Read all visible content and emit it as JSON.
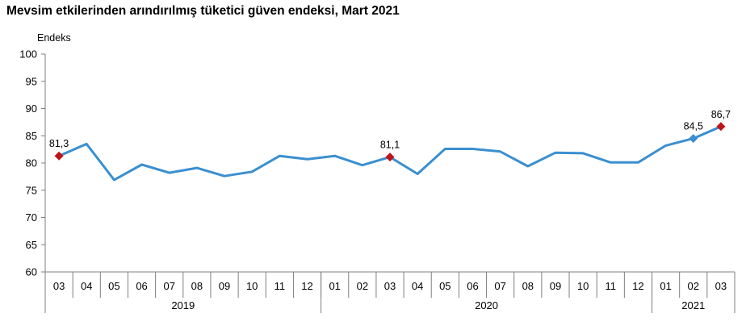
{
  "chart_data": {
    "type": "line",
    "title": "Mevsim etkilerinden arındırılmış tüketici güven endeksi, Mart 2021",
    "ylabel": "Endeks",
    "xlabel": "",
    "ylim": [
      60,
      100
    ],
    "yticks": [
      "60",
      "65",
      "70",
      "75",
      "80",
      "85",
      "90",
      "95",
      "100"
    ],
    "grid": false,
    "categories": [
      "03",
      "04",
      "05",
      "06",
      "07",
      "08",
      "09",
      "10",
      "11",
      "12",
      "01",
      "02",
      "03",
      "04",
      "05",
      "06",
      "07",
      "08",
      "09",
      "10",
      "11",
      "12",
      "01",
      "02",
      "03"
    ],
    "year_groups": [
      {
        "label": "2019",
        "start": 0,
        "end": 9
      },
      {
        "label": "2020",
        "start": 10,
        "end": 21
      },
      {
        "label": "2021",
        "start": 22,
        "end": 24
      }
    ],
    "series": [
      {
        "values": [
          81.3,
          83.5,
          76.9,
          79.7,
          78.2,
          79.1,
          77.6,
          78.4,
          81.3,
          80.7,
          81.3,
          79.6,
          81.1,
          78.0,
          82.6,
          82.6,
          82.1,
          79.4,
          81.9,
          81.8,
          80.1,
          80.1,
          83.2,
          84.5,
          86.7
        ],
        "color": "#3A8FD0"
      }
    ],
    "annotations": [
      {
        "index": 0,
        "label": "81,3",
        "marker": "diamond",
        "color": "#C0141C"
      },
      {
        "index": 12,
        "label": "81,1",
        "marker": "diamond",
        "color": "#C0141C"
      },
      {
        "index": 23,
        "label": "84,5",
        "marker": "diamond",
        "color": "#3A8FD0"
      },
      {
        "index": 24,
        "label": "86,7",
        "marker": "diamond",
        "color": "#C0141C"
      }
    ]
  }
}
